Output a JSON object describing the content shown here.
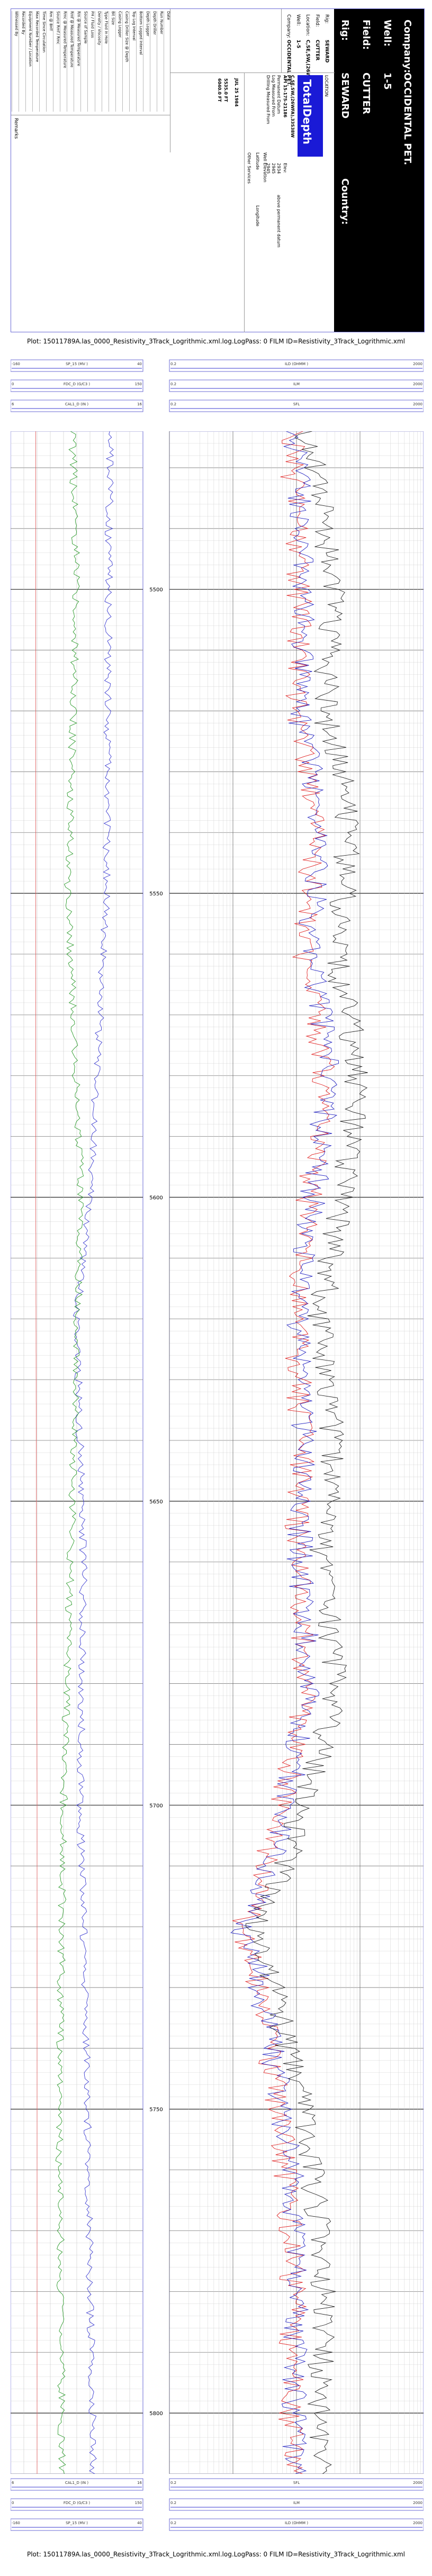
{
  "header": {
    "company_label": "Company:",
    "company_value": "OCCIDENTAL PET.",
    "well_label": "Well:",
    "well_value": "1-5",
    "field_label": "Field:",
    "field_value": "CUTTER",
    "rig_label": "Rig:",
    "rig_value": "SEWARD",
    "country_label": "Country:",
    "summary": [
      {
        "label": "Rig:",
        "value": "SEWARD"
      },
      {
        "label": "Field:",
        "value": "CUTTER"
      },
      {
        "label": "Location:",
        "value": "C,SE,SW,(26WFA),33S38W"
      },
      {
        "label": "Well:",
        "value": "1-5"
      },
      {
        "label": "Company:",
        "value": "OCCIDENTAL PET."
      }
    ],
    "location_title": "LOCATION",
    "logo_text": "TotalDepth",
    "logo_sub": "Log Data Wrangling",
    "location_detail": "C,SE,SW,(26WFA),33S38W",
    "location_lines": [
      "API 15-175-21186",
      "Permanent Datum",
      "Log Measured From",
      "Drilling Measured From"
    ],
    "elevation_label": "Elev:",
    "elevation_values": [
      "2934",
      "2945",
      "2945"
    ],
    "ref_lines": [
      "above permanent datum"
    ],
    "latitude_label": "Latitude",
    "longitude_label": "Longitude",
    "date_value": "JUL 25 1984",
    "run_values": [
      "5535.0 FT",
      "6040.0 FT"
    ],
    "other_services_label": "Other Services",
    "well_elevation_label": "Well Elevation",
    "table_rows": [
      "Date",
      "Run Number",
      "Depth Driller",
      "Depth Logger",
      "Bottom Logged Interval",
      "Top Log Interval",
      "Casing Driller Size @ Depth",
      "Casing Logger",
      "Bit Size",
      "Type Fluid in Hole",
      "Density / Viscosity",
      "PH / Fluid Loss",
      "Source of Sample",
      "Rm @ Measured Temperature",
      "Rmf @ Measured Temperature",
      "Rmc @ Measured Temperature",
      "Source Rmf / Rmc",
      "Rm @ BHT",
      "Time Since Circulation",
      "Max Recorded Temperature",
      "Equipment Number / Location",
      "Recorded By",
      "Witnessed By"
    ],
    "remarks_label": "Remarks"
  },
  "title_caption": "Plot: 15011789A.las_0000_Resistivity_3Track_Logrithmic.xml.log.LogPass: 0 FILM ID=Resistivity_3Track_Logrithmic.xml",
  "bottom_caption": "Plot: 15011789A.las_0000_Resistivity_3Track_Logrithmic.xml.log.LogPass: 0 FILM ID=Resistivity_3Track_Logrithmic.xml",
  "track1_scales": [
    {
      "left": "-160",
      "name": "SP_15 (MV )",
      "right": "40"
    },
    {
      "left": "0",
      "name": "FDC_D (G/C3 )",
      "right": "150"
    },
    {
      "left": "6",
      "name": "CAL1_D (IN )",
      "right": "16"
    }
  ],
  "track2_scales": [
    {
      "left": "0.2",
      "name": "ILD (OHMM )",
      "right": "2000"
    },
    {
      "left": "0.2",
      "name": "ILM",
      "right": "2000"
    },
    {
      "left": "0.2",
      "name": "SFL",
      "right": "2000"
    }
  ],
  "depth_labels": [
    "5500",
    "5550",
    "5600",
    "5650",
    "5700",
    "5750",
    "5800"
  ],
  "chart_data": {
    "type": "line",
    "title": "",
    "depth_unit": "FT",
    "depth_range": [
      5474,
      5810
    ],
    "tracks": [
      {
        "name": "track1",
        "series": [
          {
            "name": "SP_15",
            "color": "#3a3ad0",
            "x_range": [
              -160,
              40
            ],
            "depth": [
              5474,
              5500,
              5550,
              5600,
              5620,
              5640,
              5660,
              5700,
              5740,
              5780,
              5810
            ],
            "values": [
              -10,
              -12,
              -15,
              -40,
              -60,
              -55,
              -50,
              -55,
              -45,
              -40,
              -35
            ]
          },
          {
            "name": "FDC_D",
            "color": "#2a9a2a",
            "x_range": [
              0,
              150
            ],
            "depth": [
              5474,
              5500,
              5550,
              5600,
              5650,
              5700,
              5750,
              5800
            ],
            "values": [
              70,
              75,
              65,
              80,
              70,
              60,
              55,
              58
            ]
          },
          {
            "name": "CAL1_D",
            "color": "#e06060",
            "x_range": [
              6,
              16
            ],
            "depth": [
              5474,
              5600,
              5700,
              5810
            ],
            "values": [
              7.9,
              7.9,
              8.0,
              8.0
            ]
          }
        ]
      },
      {
        "name": "track2",
        "scale": "log",
        "series": [
          {
            "name": "ILD",
            "color": "#e02020",
            "x_range": [
              0.2,
              2000
            ],
            "depth": [
              5474,
              5500,
              5520,
              5540,
              5560,
              5580,
              5600,
              5620,
              5640,
              5660,
              5680,
              5700,
              5720,
              5740,
              5760,
              5780,
              5800
            ],
            "values": [
              18,
              25,
              22,
              40,
              30,
              60,
              35,
              20,
              28,
              22,
              30,
              12,
              3,
              8,
              15,
              20,
              18
            ]
          },
          {
            "name": "ILM",
            "color": "#2020c0",
            "x_range": [
              0.2,
              2000
            ],
            "depth": [
              5474,
              5500,
              5520,
              5540,
              5560,
              5580,
              5600,
              5620,
              5640,
              5660,
              5680,
              5700,
              5720,
              5740,
              5760,
              5780,
              5800
            ],
            "values": [
              20,
              30,
              24,
              50,
              35,
              70,
              40,
              22,
              30,
              25,
              35,
              14,
              3,
              9,
              18,
              22,
              20
            ]
          },
          {
            "name": "SFL",
            "color": "#202020",
            "x_range": [
              0.2,
              2000
            ],
            "depth": [
              5474,
              5500,
              5520,
              5540,
              5560,
              5580,
              5600,
              5620,
              5640,
              5660,
              5680,
              5700,
              5720,
              5740,
              5760,
              5780,
              5800
            ],
            "values": [
              30,
              80,
              60,
              150,
              90,
              200,
              110,
              50,
              80,
              55,
              90,
              25,
              4,
              15,
              40,
              60,
              50
            ]
          }
        ]
      }
    ]
  }
}
